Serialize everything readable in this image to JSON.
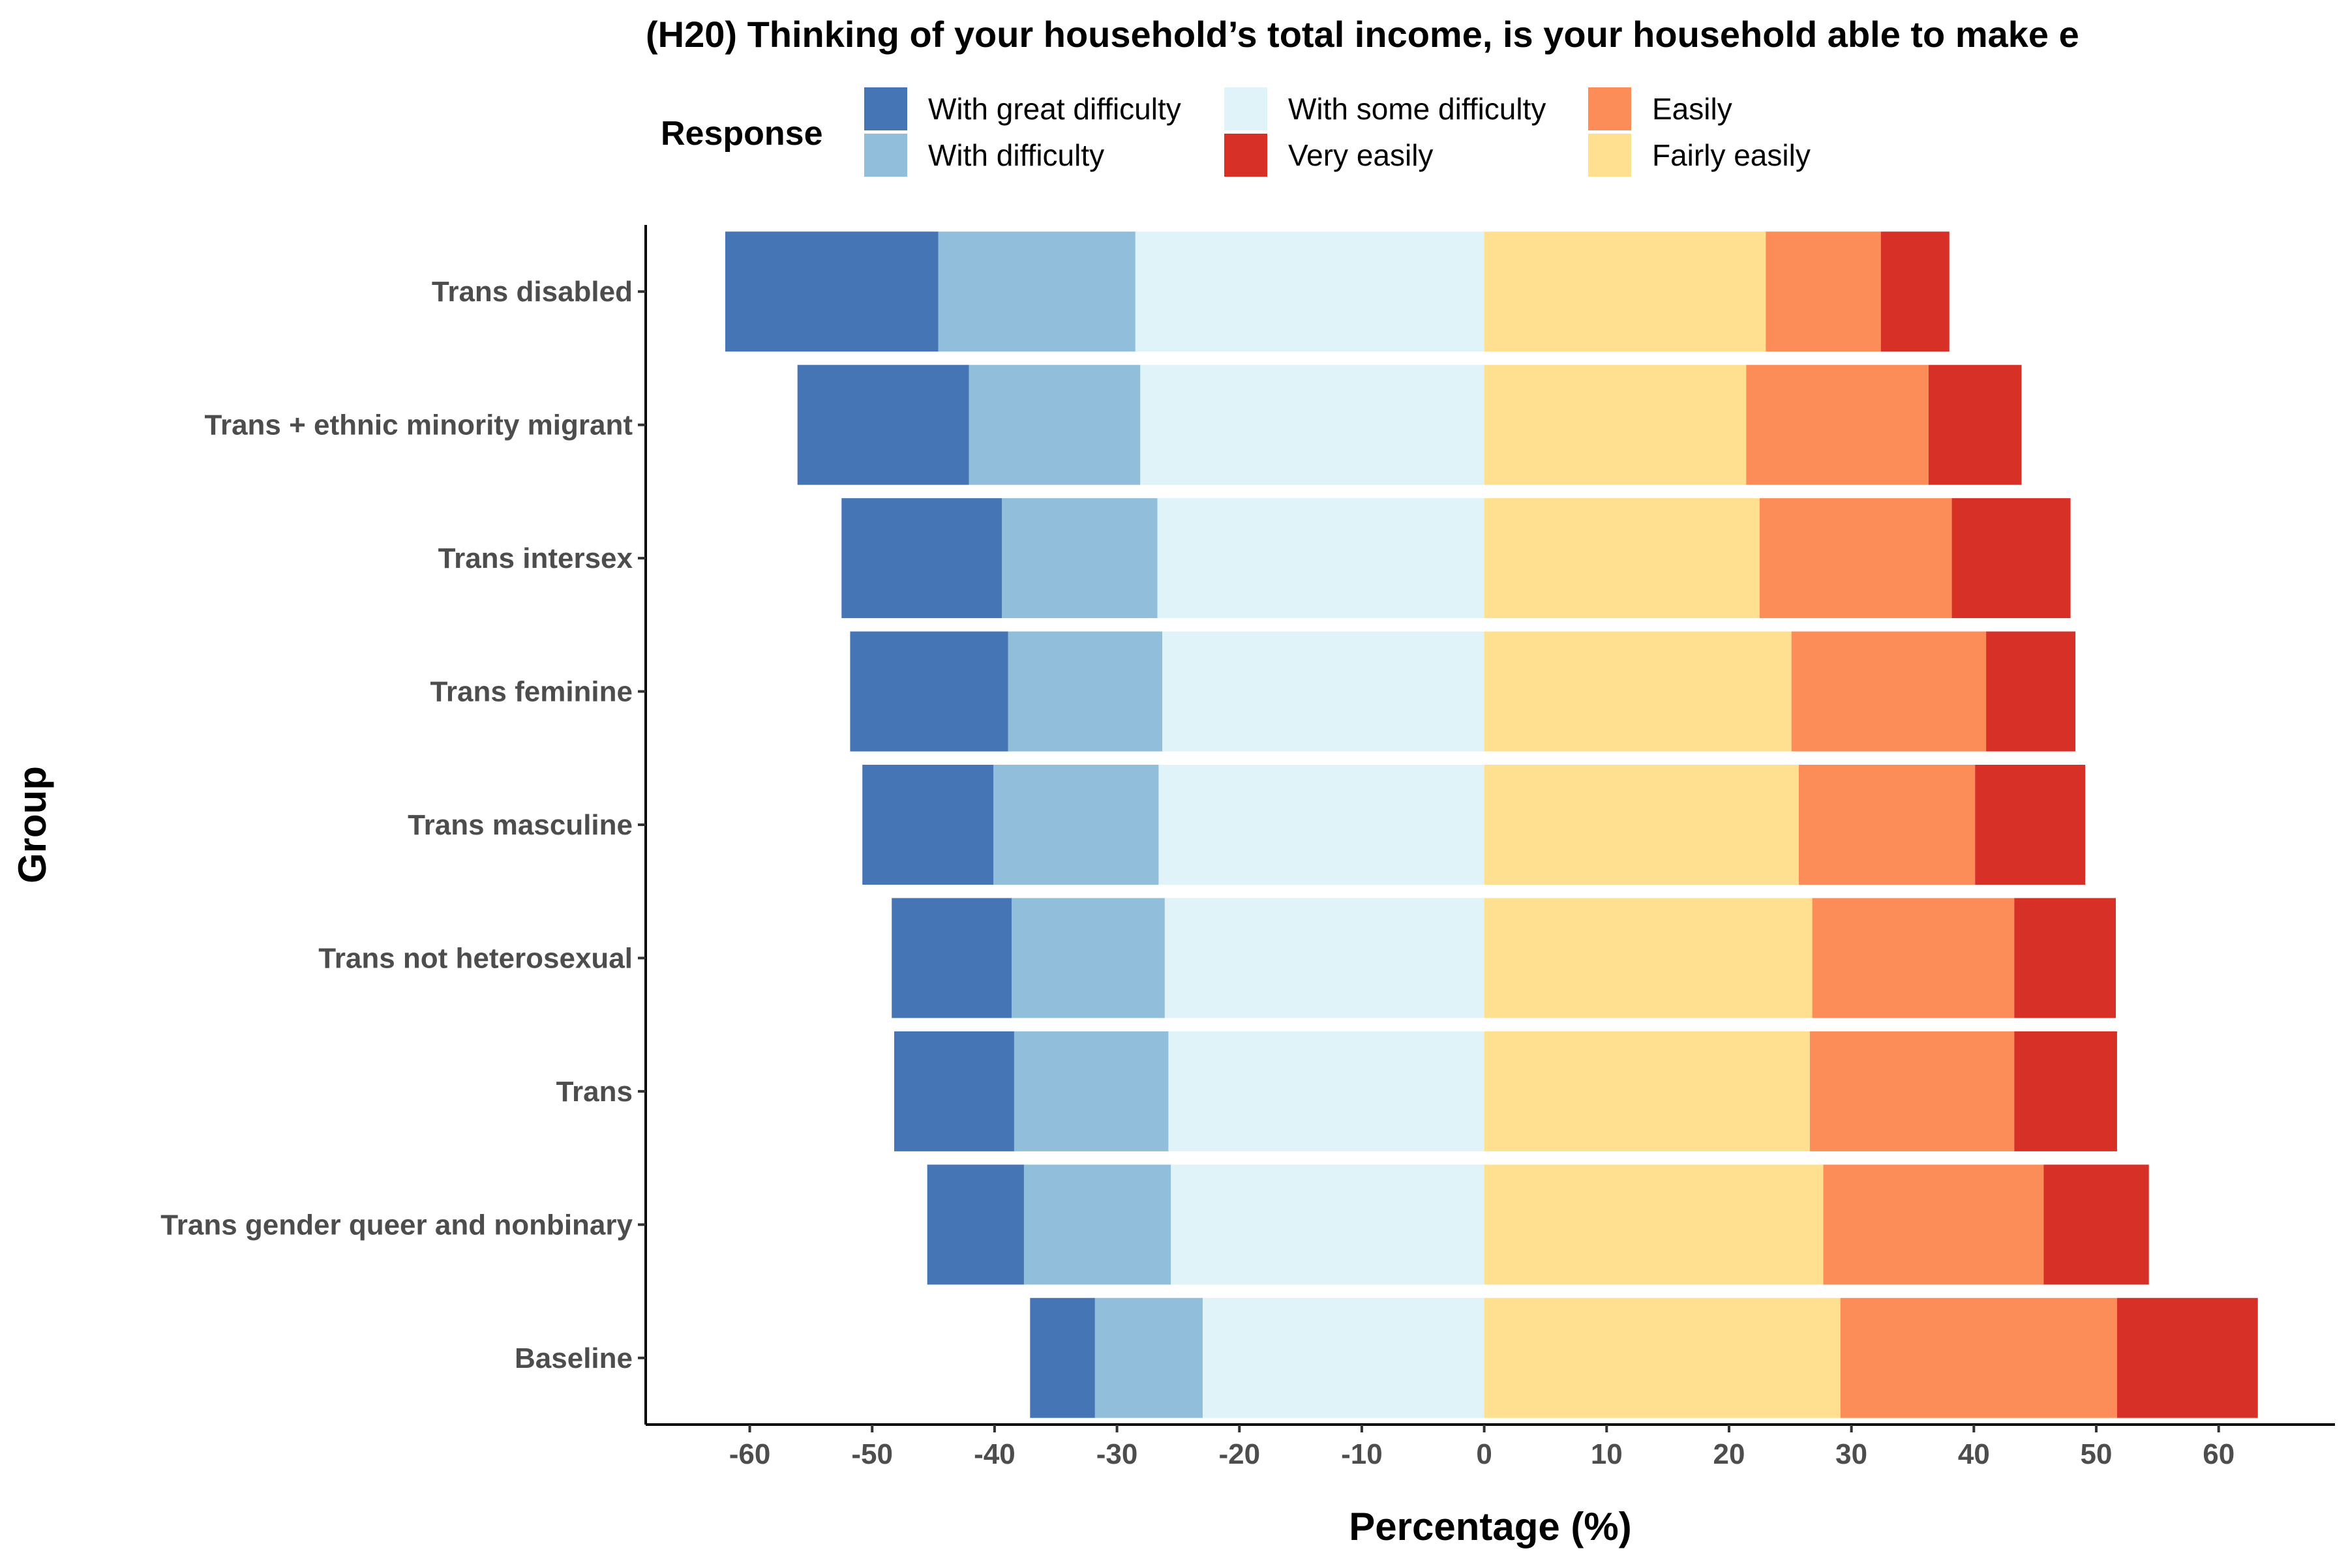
{
  "chart_data": {
    "type": "bar",
    "orientation": "horizontal",
    "stacking": "diverging",
    "title": "(H20) Thinking of your household’s total income, is your household able to make e",
    "xlabel": "Percentage (%)",
    "ylabel": "Group",
    "xlim": [
      -68.5,
      69.5
    ],
    "xticks": [
      -60,
      -50,
      -40,
      -30,
      -20,
      -10,
      0,
      10,
      20,
      30,
      40,
      50,
      60
    ],
    "grid": false,
    "legend": {
      "title": "Response",
      "position": "top",
      "entries": [
        {
          "name": "With great difficulty",
          "color": "#4575b4"
        },
        {
          "name": "With difficulty",
          "color": "#91bfdb"
        },
        {
          "name": "With some difficulty",
          "color": "#e0f3f8"
        },
        {
          "name": "Very easily",
          "color": "#d73027"
        },
        {
          "name": "Easily",
          "color": "#fc8d59"
        },
        {
          "name": "Fairly easily",
          "color": "#fee090"
        }
      ]
    },
    "categories": [
      "Trans disabled",
      "Trans + ethnic minority migrant",
      "Trans intersex",
      "Trans feminine",
      "Trans masculine",
      "Trans not heterosexual",
      "Trans",
      "Trans gender queer and nonbinary",
      "Baseline"
    ],
    "negative_series": [
      {
        "name": "With some difficulty",
        "color": "#e0f3f8",
        "values": [
          28.5,
          28.1,
          26.7,
          26.3,
          26.6,
          26.1,
          25.8,
          25.6,
          23.0
        ]
      },
      {
        "name": "With difficulty",
        "color": "#91bfdb",
        "values": [
          16.1,
          14.0,
          12.7,
          12.6,
          13.5,
          12.5,
          12.6,
          12.0,
          8.8
        ]
      },
      {
        "name": "With great difficulty",
        "color": "#4575b4",
        "values": [
          17.4,
          14.0,
          13.1,
          12.9,
          10.7,
          9.8,
          9.8,
          7.9,
          5.3
        ]
      }
    ],
    "positive_series": [
      {
        "name": "Fairly easily",
        "color": "#fee090",
        "values": [
          23.0,
          21.4,
          22.5,
          25.1,
          25.7,
          26.8,
          26.6,
          27.7,
          29.1
        ]
      },
      {
        "name": "Easily",
        "color": "#fc8d59",
        "values": [
          9.4,
          14.9,
          15.7,
          15.9,
          14.4,
          16.5,
          16.7,
          18.0,
          22.6
        ]
      },
      {
        "name": "Very easily",
        "color": "#d73027",
        "values": [
          5.6,
          7.6,
          9.7,
          7.3,
          9.0,
          8.3,
          8.4,
          8.6,
          11.5
        ]
      }
    ]
  }
}
